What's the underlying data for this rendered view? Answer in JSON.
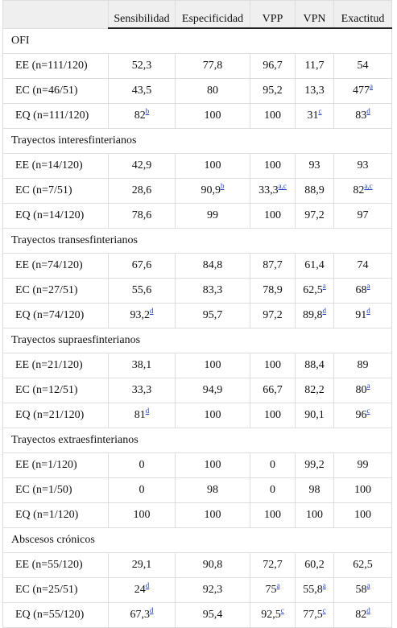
{
  "table": {
    "columns": [
      "Sensibilidad",
      "Especificidad",
      "VPP",
      "VPN",
      "Exactitud"
    ],
    "sections": [
      {
        "title": "OFI",
        "rows": [
          {
            "label": "EE (n=111/120)",
            "cells": [
              "52,3",
              "77,8",
              "96,7",
              "11,7",
              "54"
            ]
          },
          {
            "label": "EC (n=46/51)",
            "cells": [
              "43,5",
              "80",
              "95,2",
              "13,3",
              {
                "text": "477",
                "sup": "a"
              }
            ]
          },
          {
            "label": "EQ (n=111/120)",
            "cells": [
              {
                "text": "82",
                "sup": "b"
              },
              "100",
              "100",
              {
                "text": "31",
                "sup": "c"
              },
              {
                "text": "83",
                "sup": "d"
              }
            ]
          }
        ]
      },
      {
        "title": "Trayectos interesfinterianos",
        "rows": [
          {
            "label": "EE (n=14/120)",
            "cells": [
              "42,9",
              "100",
              "100",
              "93",
              "93"
            ]
          },
          {
            "label": "EC (n=7/51)",
            "cells": [
              "28,6",
              {
                "text": "90,9",
                "sup": "b"
              },
              {
                "text": "33,3",
                "sup": "a,c"
              },
              "88,9",
              {
                "text": "82",
                "sup": "a,c"
              }
            ]
          },
          {
            "label": "EQ (n=14/120)",
            "cells": [
              "78,6",
              "99",
              "100",
              "97,2",
              "97"
            ]
          }
        ]
      },
      {
        "title": "Trayectos transesfinterianos",
        "rows": [
          {
            "label": "EE (n=74/120)",
            "cells": [
              "67,6",
              "84,8",
              "87,7",
              "61,4",
              "74"
            ]
          },
          {
            "label": "EC (n=27/51)",
            "cells": [
              "55,6",
              "83,3",
              "78,9",
              {
                "text": "62,5",
                "sup": "a"
              },
              {
                "text": "68",
                "sup": "a"
              }
            ]
          },
          {
            "label": "EQ (n=74/120)",
            "cells": [
              {
                "text": "93,2",
                "sup": "d"
              },
              "95,7",
              "97,2",
              {
                "text": "89,8",
                "sup": "d"
              },
              {
                "text": "91",
                "sup": "d"
              }
            ]
          }
        ]
      },
      {
        "title": "Trayectos supraesfinterianos",
        "rows": [
          {
            "label": "EE (n=21/120)",
            "cells": [
              "38,1",
              "100",
              "100",
              "88,4",
              "89"
            ]
          },
          {
            "label": "EC (n=12/51)",
            "cells": [
              "33,3",
              "94,9",
              "66,7",
              "82,2",
              {
                "text": "80",
                "sup": "a"
              }
            ]
          },
          {
            "label": "EQ (n=21/120)",
            "cells": [
              {
                "text": "81",
                "sup": "d"
              },
              "100",
              "100",
              "90,1",
              {
                "text": "96",
                "sup": "c"
              }
            ]
          }
        ]
      },
      {
        "title": "Trayectos extraesfinterianos",
        "rows": [
          {
            "label": "EE (n=1/120)",
            "cells": [
              "0",
              "100",
              "0",
              "99,2",
              "99"
            ]
          },
          {
            "label": "EC (n=1/50)",
            "cells": [
              "0",
              "98",
              "0",
              "98",
              "100"
            ]
          },
          {
            "label": "EQ (n=1/120)",
            "cells": [
              "100",
              "100",
              "100",
              "100",
              "100"
            ]
          }
        ]
      },
      {
        "title": "Abscesos crónicos",
        "rows": [
          {
            "label": "EE (n=55/120)",
            "cells": [
              "29,1",
              "90,8",
              "72,7",
              "60,2",
              "62,5"
            ]
          },
          {
            "label": "EC (n=25/51)",
            "cells": [
              {
                "text": "24",
                "sup": "d"
              },
              "92,3",
              {
                "text": "75",
                "sup": "a"
              },
              {
                "text": "55,8",
                "sup": "a"
              },
              {
                "text": "58",
                "sup": "a"
              }
            ]
          },
          {
            "label": "EQ (n=55/120)",
            "cells": [
              {
                "text": "67,3",
                "sup": "d"
              },
              "95,4",
              {
                "text": "92,5",
                "sup": "c"
              },
              {
                "text": "77,5",
                "sup": "c"
              },
              {
                "text": "82",
                "sup": "d"
              }
            ]
          }
        ]
      }
    ]
  }
}
